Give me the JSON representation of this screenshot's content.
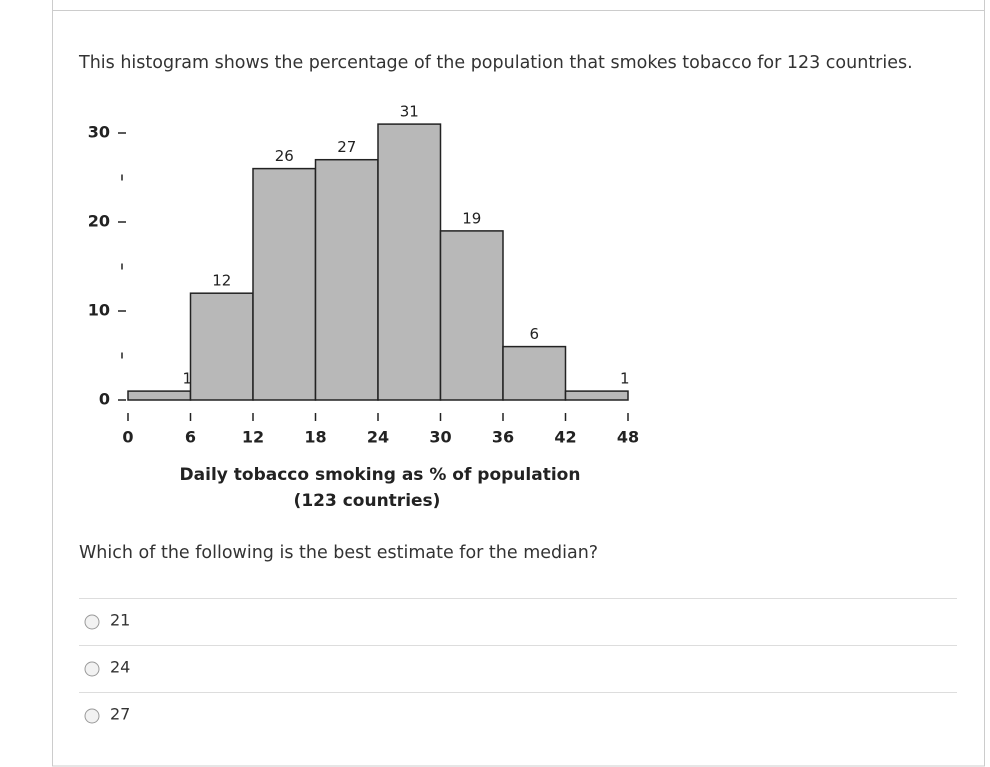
{
  "question": "This histogram shows the percentage of the population that smokes tobacco for 123 countries.",
  "chart_data": {
    "type": "histogram",
    "bins": [
      0,
      6,
      12,
      18,
      24,
      30,
      36,
      42,
      48
    ],
    "values": [
      1,
      12,
      26,
      27,
      31,
      19,
      6,
      1
    ],
    "color": "#b8b8b8",
    "xlabel": [
      "Daily tobacco smoking as % of population",
      "(123 countries)"
    ],
    "xlim": [
      0,
      48
    ],
    "xticks": [
      0,
      6,
      12,
      18,
      24,
      30,
      36,
      42,
      48
    ],
    "ylim": [
      0,
      31
    ],
    "yticks": [
      0,
      10,
      20,
      30
    ],
    "yminor_ticks": [
      5,
      15,
      25
    ]
  },
  "prompt": "Which of the following is the best estimate for the median?",
  "options": [
    "21",
    "24",
    "27"
  ]
}
